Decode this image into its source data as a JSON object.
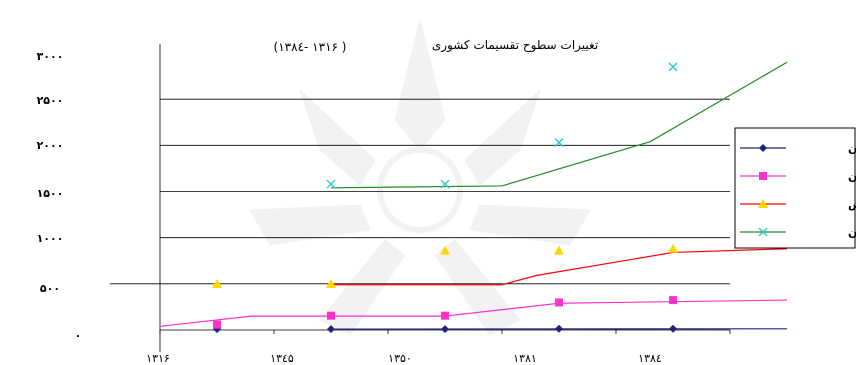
{
  "chart_data": {
    "type": "line",
    "title": "تغییرات سطوح تقسیمات کشوری",
    "subtitle": "( ۱۳۱۶ -۱۳۸٤)",
    "x_tick_labels": [
      "۱۳۱۶",
      "۱۳٤۵",
      "۱۳۵۰",
      "۱۳۸۱",
      "۱۳۸٤"
    ],
    "y_tick_labels": [
      "۰",
      "۵۰۰",
      "۱۰۰۰",
      "۱۵۰۰",
      "۲۰۰۰",
      "۲۵۰۰",
      "۳۰۰۰"
    ],
    "ylim": [
      0,
      3000
    ],
    "grid": true,
    "legend_position": "right",
    "series": [
      {
        "name": "استان",
        "color": "#1a237e",
        "marker": "diamond",
        "markers": [
          10,
          10,
          10,
          13,
          13
        ],
        "line_x": [
          1.5,
          5.5
        ],
        "line_y": [
          10,
          13
        ]
      },
      {
        "name": "شهرستان",
        "color": "#ff33cc",
        "marker": "square",
        "markers": [
          58,
          155,
          155,
          298,
          324
        ],
        "line_x": [
          0,
          0.8,
          2.5,
          3.5,
          5.5
        ],
        "line_y": [
          40,
          150,
          150,
          290,
          324
        ]
      },
      {
        "name": "بخش",
        "color": "#ffd700",
        "line_color": "#ff0000",
        "marker": "triangle",
        "markers": [
          498,
          498,
          860,
          860,
          880
        ],
        "line_x": [
          1.5,
          3.0,
          3.3,
          4.5,
          5.5
        ],
        "line_y": [
          490,
          490,
          590,
          840,
          880
        ]
      },
      {
        "name": "دهستان",
        "color": "#33cccc",
        "line_color": "#228b22",
        "marker": "x",
        "markers": [
          1580,
          1580,
          2030,
          2850
        ],
        "line_x": [
          1.5,
          3.0,
          4.3,
          5.5
        ],
        "line_y": [
          1540,
          1560,
          2040,
          2900
        ]
      }
    ]
  }
}
